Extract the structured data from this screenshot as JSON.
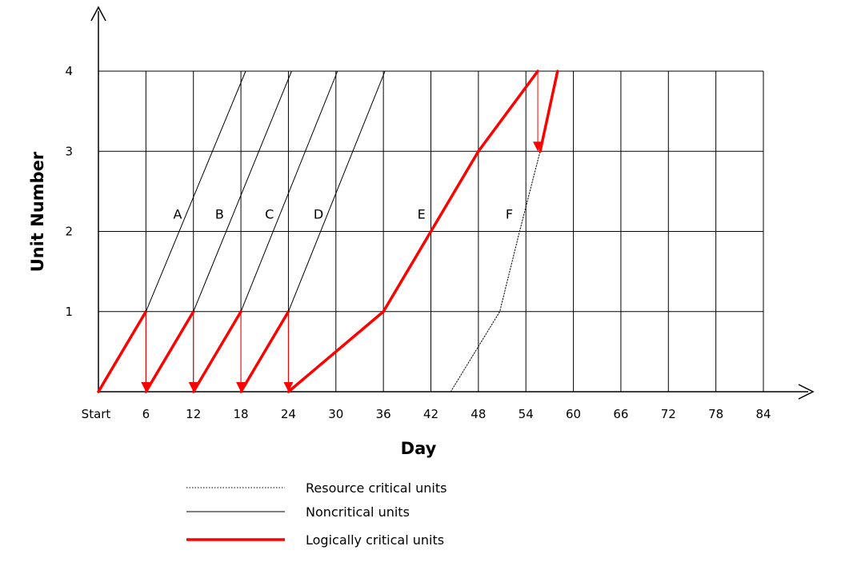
{
  "chart_data": {
    "type": "line",
    "title": "",
    "xlabel": "Day",
    "ylabel": "Unit Number",
    "xlim": [
      0,
      84
    ],
    "ylim": [
      0,
      4
    ],
    "x_ticks": [
      {
        "value": 0,
        "label": "Start"
      },
      {
        "value": 6,
        "label": "6"
      },
      {
        "value": 12,
        "label": "12"
      },
      {
        "value": 18,
        "label": "18"
      },
      {
        "value": 24,
        "label": "24"
      },
      {
        "value": 30,
        "label": "30"
      },
      {
        "value": 36,
        "label": "36"
      },
      {
        "value": 42,
        "label": "42"
      },
      {
        "value": 48,
        "label": "48"
      },
      {
        "value": 54,
        "label": "54"
      },
      {
        "value": 60,
        "label": "60"
      },
      {
        "value": 66,
        "label": "66"
      },
      {
        "value": 72,
        "label": "72"
      },
      {
        "value": 78,
        "label": "78"
      },
      {
        "value": 84,
        "label": "84"
      }
    ],
    "y_ticks": [
      {
        "value": 1,
        "label": "1"
      },
      {
        "value": 2,
        "label": "2"
      },
      {
        "value": 3,
        "label": "3"
      },
      {
        "value": 4,
        "label": "4"
      }
    ],
    "grid": true,
    "legend_position": "bottom",
    "legend": [
      {
        "label": "Resource critical units",
        "style": "dotted"
      },
      {
        "label": "Noncritical units",
        "style": "thin"
      },
      {
        "label": "Logically critical units",
        "style": "bold-red"
      }
    ],
    "colors": {
      "critical": "#ff0000",
      "normal": "#000000"
    },
    "series": [
      {
        "activity": "A",
        "label_at": [
          10,
          2.22
        ],
        "segments": [
          {
            "style": "bold-red",
            "points": [
              [
                0,
                0
              ],
              [
                6,
                1
              ]
            ]
          },
          {
            "style": "thin",
            "points": [
              [
                6,
                1
              ],
              [
                18.6,
                4
              ]
            ]
          }
        ]
      },
      {
        "activity": "B",
        "label_at": [
          15.3,
          2.22
        ],
        "segments": [
          {
            "style": "bold-red",
            "points": [
              [
                6,
                0
              ],
              [
                12,
                1
              ]
            ]
          },
          {
            "style": "thin",
            "points": [
              [
                12,
                1
              ],
              [
                24.4,
                4
              ]
            ]
          }
        ]
      },
      {
        "activity": "C",
        "label_at": [
          21.6,
          2.22
        ],
        "segments": [
          {
            "style": "bold-red",
            "points": [
              [
                12,
                0
              ],
              [
                18,
                1
              ]
            ]
          },
          {
            "style": "thin",
            "points": [
              [
                18,
                1
              ],
              [
                30.2,
                4
              ]
            ]
          }
        ]
      },
      {
        "activity": "D",
        "label_at": [
          27.8,
          2.22
        ],
        "segments": [
          {
            "style": "bold-red",
            "points": [
              [
                18,
                0
              ],
              [
                24,
                1
              ]
            ]
          },
          {
            "style": "thin",
            "points": [
              [
                24,
                1
              ],
              [
                36.2,
                4
              ]
            ]
          }
        ]
      },
      {
        "activity": "E",
        "label_at": [
          40.8,
          2.22
        ],
        "segments": [
          {
            "style": "bold-red",
            "points": [
              [
                24,
                0
              ],
              [
                36,
                1
              ],
              [
                42,
                2
              ],
              [
                48,
                3
              ],
              [
                55.5,
                4
              ]
            ]
          }
        ]
      },
      {
        "activity": "F",
        "label_at": [
          51.9,
          2.22
        ],
        "segments": [
          {
            "style": "dotted",
            "points": [
              [
                44.5,
                0
              ],
              [
                50.7,
                1
              ],
              [
                53.2,
                2
              ],
              [
                55.8,
                3
              ]
            ]
          },
          {
            "style": "bold-red",
            "points": [
              [
                55.8,
                3
              ],
              [
                58,
                4
              ]
            ]
          }
        ]
      }
    ],
    "links": [
      {
        "from": [
          6,
          1
        ],
        "to": [
          6,
          0
        ]
      },
      {
        "from": [
          12,
          1
        ],
        "to": [
          12,
          0
        ]
      },
      {
        "from": [
          18,
          1
        ],
        "to": [
          18,
          0
        ]
      },
      {
        "from": [
          24,
          1
        ],
        "to": [
          24,
          0
        ]
      },
      {
        "from": [
          55.5,
          4
        ],
        "to": [
          55.5,
          3
        ]
      }
    ]
  }
}
